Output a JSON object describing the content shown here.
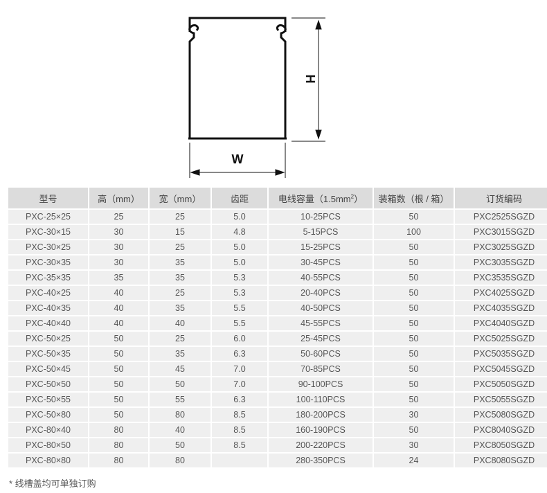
{
  "diagram": {
    "height_label": "H",
    "width_label": "W"
  },
  "table": {
    "headers": [
      "型号",
      "高（mm）",
      "宽（mm）",
      "齿距",
      "电线容量（1.5mm",
      "装箱数（根 / 箱）",
      "订货编码"
    ],
    "capacity_superscript": "2",
    "capacity_suffix": "）",
    "rows": [
      [
        "PXC-25×25",
        "25",
        "25",
        "5.0",
        "10-25PCS",
        "50",
        "PXC2525SGZD"
      ],
      [
        "PXC-30×15",
        "30",
        "15",
        "4.8",
        "5-15PCS",
        "100",
        "PXC3015SGZD"
      ],
      [
        "PXC-30×25",
        "30",
        "25",
        "5.0",
        "15-25PCS",
        "50",
        "PXC3025SGZD"
      ],
      [
        "PXC-30×35",
        "30",
        "35",
        "5.0",
        "30-45PCS",
        "50",
        "PXC3035SGZD"
      ],
      [
        "PXC-35×35",
        "35",
        "35",
        "5.3",
        "40-55PCS",
        "50",
        "PXC3535SGZD"
      ],
      [
        "PXC-40×25",
        "40",
        "25",
        "5.3",
        "20-40PCS",
        "50",
        "PXC4025SGZD"
      ],
      [
        "PXC-40×35",
        "40",
        "35",
        "5.5",
        "40-50PCS",
        "50",
        "PXC4035SGZD"
      ],
      [
        "PXC-40×40",
        "40",
        "40",
        "5.5",
        "45-55PCS",
        "50",
        "PXC4040SGZD"
      ],
      [
        "PXC-50×25",
        "50",
        "25",
        "6.0",
        "25-45PCS",
        "50",
        "PXC5025SGZD"
      ],
      [
        "PXC-50×35",
        "50",
        "35",
        "6.3",
        "50-60PCS",
        "50",
        "PXC5035SGZD"
      ],
      [
        "PXC-50×45",
        "50",
        "45",
        "7.0",
        "70-85PCS",
        "50",
        "PXC5045SGZD"
      ],
      [
        "PXC-50×50",
        "50",
        "50",
        "7.0",
        "90-100PCS",
        "50",
        "PXC5050SGZD"
      ],
      [
        "PXC-50×55",
        "50",
        "55",
        "6.3",
        "100-110PCS",
        "50",
        "PXC5055SGZD"
      ],
      [
        "PXC-50×80",
        "50",
        "80",
        "8.5",
        "180-200PCS",
        "30",
        "PXC5080SGZD"
      ],
      [
        "PXC-80×40",
        "80",
        "40",
        "8.5",
        "160-190PCS",
        "50",
        "PXC8040SGZD"
      ],
      [
        "PXC-80×50",
        "80",
        "50",
        "8.5",
        "200-220PCS",
        "30",
        "PXC8050SGZD"
      ],
      [
        "PXC-80×80",
        "80",
        "80",
        "",
        "280-350PCS",
        "24",
        "PXC8080SGZD"
      ]
    ]
  },
  "note": "* 线槽盖均可单独订购"
}
